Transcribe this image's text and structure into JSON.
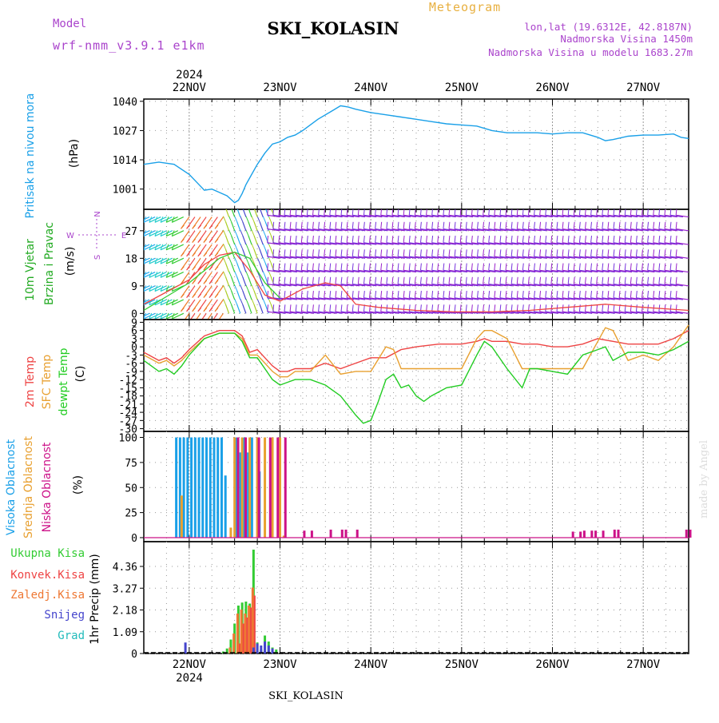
{
  "header": {
    "model_label": "Model",
    "model_name": "wrf-nmm_v3.9.1 e1km",
    "station": "SKI_KOLASIN",
    "meteogram": "Meteogram",
    "lonlat": "lon,lat (19.6312E, 42.8187N)",
    "elevation": "Nadmorska Visina 1450m",
    "model_elevation": "Nadmorska Visina u modelu 1683.27m",
    "footer_station": "SKI_KOLASIN",
    "watermark": "made by Angel"
  },
  "colors": {
    "pressure": "#1aa0e8",
    "temp2m": "#ee4444",
    "sfc": "#e8a030",
    "dewpt": "#22cc22",
    "high_cloud": "#1aa0e8",
    "mid_cloud": "#e8a030",
    "low_cloud": "#cc1188",
    "total_precip": "#33cc33",
    "conv": "#ee4444",
    "frz": "#ee7733",
    "snow": "#4444cc",
    "hail": "#22bbbb",
    "wind_label": "#22aa22",
    "wind_scale": "#aa44cc",
    "title_purple": "#aa44cc",
    "meteogram_orange": "#e8b040"
  },
  "chart_data": [
    {
      "type": "line",
      "id": "pressure",
      "ylabel_lines": [
        "Pritisak na nivou mora"
      ],
      "unit": "(hPa)",
      "yticks": [
        1001,
        1014,
        1027,
        1040
      ],
      "ylim": [
        992,
        1041
      ],
      "x_date_labels": [
        "22NOV",
        "23NOV",
        "24NOV",
        "25NOV",
        "26NOV",
        "27NOV"
      ],
      "x_year_label": "2024",
      "xlim_hours": [
        -12,
        132
      ],
      "grid": true,
      "series": [
        {
          "color_key": "pressure",
          "x": [
            -12,
            -8,
            -4,
            0,
            2,
            4,
            6,
            8,
            10,
            12,
            13,
            14,
            15,
            16,
            18,
            20,
            22,
            24,
            26,
            28,
            30,
            34,
            38,
            40,
            42,
            44,
            48,
            52,
            56,
            60,
            64,
            68,
            72,
            76,
            80,
            84,
            88,
            92,
            96,
            100,
            104,
            108,
            110,
            112,
            116,
            120,
            124,
            128,
            130,
            132
          ],
          "y": [
            1012,
            1013,
            1012,
            1007.5,
            1004,
            1000.5,
            1001,
            999.5,
            998,
            995,
            996,
            999,
            1003,
            1006,
            1012,
            1017,
            1021,
            1022,
            1024,
            1025,
            1027,
            1032,
            1036,
            1038,
            1037.5,
            1036.5,
            1035,
            1034,
            1033,
            1032,
            1031,
            1030,
            1029.5,
            1029,
            1027,
            1026,
            1026,
            1026,
            1025.5,
            1026,
            1026,
            1024,
            1022.5,
            1023,
            1024.5,
            1025,
            1025,
            1025.5,
            1024,
            1023.5
          ]
        }
      ]
    },
    {
      "type": "line",
      "id": "wind",
      "ylabel_lines": [
        "10m Vjetar",
        "Brzina i Pravac"
      ],
      "unit": "(m/s)",
      "yticks": [
        0,
        9,
        18,
        27
      ],
      "ylim": [
        -2,
        34
      ],
      "grid": true,
      "compass": {
        "n": "N",
        "s": "S",
        "e": "E",
        "w": "W"
      },
      "series": [
        {
          "name": "",
          "color_key": "temp2m",
          "x": [
            -12,
            -6,
            0,
            4,
            8,
            12,
            16,
            20,
            24,
            30,
            36,
            40,
            44,
            50,
            60,
            70,
            80,
            90,
            100,
            110,
            120,
            132
          ],
          "y": [
            3,
            7,
            11,
            16,
            19,
            20,
            14,
            6,
            4,
            8,
            10,
            9,
            3,
            2,
            1,
            0.5,
            0.5,
            1,
            2,
            3,
            2,
            1
          ]
        },
        {
          "name": "",
          "color_key": "total_precip",
          "x": [
            -12,
            -8,
            -4,
            0,
            4,
            8,
            12,
            16,
            20,
            24
          ],
          "y": [
            1,
            4,
            7,
            10,
            14,
            18,
            20,
            18,
            10,
            5
          ]
        }
      ],
      "barb_rows": [
        0,
        4.5,
        9,
        13.5,
        18,
        22.5,
        27,
        31.5
      ]
    },
    {
      "type": "line",
      "id": "temperature",
      "ylabel_lines": [
        "2m Temp",
        "SFC Temp",
        "dewpt Temp"
      ],
      "unit": "(C)",
      "yticks": [
        9,
        6,
        3,
        0,
        -3,
        -6,
        -9,
        -12,
        -15,
        -18,
        -21,
        -24,
        -27,
        -30
      ],
      "ytick_labels": [
        "9",
        "6",
        "3",
        "0",
        "-3",
        "-6",
        "-9",
        "-12",
        "-15",
        "-18",
        "-21",
        "-24",
        "-27",
        "-30"
      ],
      "ylim": [
        -31,
        10
      ],
      "grid": true,
      "series": [
        {
          "name": "2m Temp",
          "color_key": "temp2m",
          "x": [
            -12,
            -8,
            -6,
            -4,
            -2,
            0,
            4,
            8,
            12,
            14,
            16,
            18,
            20,
            22,
            24,
            26,
            28,
            32,
            36,
            40,
            44,
            48,
            52,
            56,
            60,
            66,
            72,
            76,
            78,
            80,
            84,
            88,
            92,
            96,
            100,
            104,
            108,
            112,
            116,
            120,
            124,
            128,
            132
          ],
          "y": [
            -2,
            -5,
            -4,
            -6,
            -4,
            -1,
            4,
            6,
            6,
            4,
            -2,
            -1,
            -4,
            -7,
            -9,
            -9,
            -8,
            -8,
            -6,
            -8,
            -6,
            -4,
            -4,
            -1,
            0,
            1,
            1,
            2,
            3,
            2,
            2,
            1,
            1,
            0,
            0,
            1,
            3,
            2,
            1,
            1,
            1,
            3,
            6
          ]
        },
        {
          "name": "SFC Temp",
          "color_key": "sfc",
          "x": [
            -12,
            -8,
            -6,
            -4,
            -2,
            0,
            4,
            8,
            12,
            14,
            16,
            18,
            20,
            22,
            24,
            26,
            28,
            32,
            36,
            40,
            44,
            48,
            52,
            54,
            56,
            60,
            66,
            72,
            76,
            78,
            80,
            84,
            88,
            92,
            96,
            100,
            104,
            108,
            110,
            112,
            116,
            120,
            124,
            128,
            132
          ],
          "y": [
            -3,
            -6,
            -5,
            -7,
            -5,
            -2,
            3,
            5,
            5,
            3,
            -3,
            -3,
            -6,
            -9,
            -11,
            -11,
            -9,
            -9,
            -3,
            -10,
            -9,
            -9,
            0,
            -1,
            -8,
            -8,
            -8,
            -8,
            3,
            6,
            6,
            3,
            -8,
            -8,
            -8,
            -8,
            -8,
            2,
            7,
            6,
            -5,
            -3,
            -5,
            0,
            8
          ]
        },
        {
          "name": "dewpt Temp",
          "color_key": "dewpt",
          "x": [
            -12,
            -8,
            -6,
            -4,
            -2,
            0,
            4,
            8,
            12,
            14,
            16,
            18,
            20,
            22,
            24,
            26,
            28,
            32,
            36,
            40,
            44,
            46,
            48,
            50,
            52,
            54,
            56,
            58,
            60,
            62,
            64,
            68,
            72,
            76,
            78,
            80,
            84,
            88,
            90,
            92,
            96,
            100,
            104,
            108,
            110,
            112,
            116,
            120,
            124,
            128,
            132
          ],
          "y": [
            -5,
            -9,
            -8,
            -10,
            -7,
            -3,
            3,
            5,
            5,
            2,
            -4,
            -4,
            -8,
            -12,
            -14,
            -13,
            -12,
            -12,
            -14,
            -18,
            -25,
            -28,
            -27,
            -20,
            -12,
            -10,
            -15,
            -14,
            -18,
            -20,
            -18,
            -15,
            -14,
            -3,
            2,
            0,
            -8,
            -15,
            -8,
            -8,
            -9,
            -10,
            -3,
            -1,
            0,
            -5,
            -2,
            -2,
            -3,
            -1,
            2
          ]
        }
      ]
    },
    {
      "type": "bar",
      "id": "clouds",
      "ylabel_lines": [
        "Visoka Oblacnost",
        "Srednja Oblacnost",
        "Niska Oblacnost"
      ],
      "unit": "(%)",
      "yticks": [
        0,
        25,
        50,
        75,
        100
      ],
      "ylim": [
        -4,
        106
      ],
      "grid": true,
      "series": [
        {
          "name": "Visoka Oblacnost",
          "color_key": "high_cloud",
          "x": [
            -3,
            -2,
            -1,
            0,
            1,
            2,
            3,
            4,
            5,
            6,
            7,
            8,
            9,
            10,
            13,
            14,
            15,
            16,
            17,
            19
          ],
          "y": [
            100,
            100,
            100,
            100,
            100,
            100,
            100,
            100,
            100,
            100,
            100,
            100,
            100,
            62,
            100,
            85,
            100,
            85,
            100,
            66
          ]
        },
        {
          "name": "Srednja Oblacnost",
          "color_key": "mid_cloud",
          "x": [
            -2,
            11,
            12,
            14,
            16,
            18,
            20,
            22,
            24,
            25
          ],
          "y": [
            42,
            10,
            100,
            100,
            100,
            100,
            100,
            100,
            100,
            2
          ]
        },
        {
          "name": "Niska Oblacnost",
          "color_key": "low_cloud",
          "x": [
            12.5,
            14.5,
            18,
            21,
            23,
            25,
            30,
            32,
            37,
            40,
            41,
            44,
            101,
            103,
            104,
            106,
            107,
            109,
            112,
            113,
            131,
            132
          ],
          "y": [
            100,
            100,
            100,
            100,
            100,
            100,
            7,
            7,
            8,
            8,
            8,
            8,
            6,
            6,
            7,
            7,
            7,
            7,
            8,
            8,
            8,
            8
          ]
        }
      ]
    },
    {
      "type": "bar",
      "id": "precip",
      "ylabel_lines": [
        "1hr Precip (mm)"
      ],
      "legend": [
        "Ukupna Kisa",
        "Konvek.Kisa",
        "Zaledj.Kisa",
        "Snijeg",
        "Grad"
      ],
      "yticks": [
        0,
        1.09,
        2.18,
        3.27,
        4.36
      ],
      "ylim": [
        0,
        5.6
      ],
      "x_date_labels": [
        "22NOV",
        "23NOV",
        "24NOV",
        "25NOV",
        "26NOV",
        "27NOV"
      ],
      "x_year_label": "2024",
      "grid": true,
      "series": [
        {
          "name": "Ukupna Kisa",
          "color_key": "total_precip",
          "x": [
            9,
            10,
            11,
            12,
            13,
            14,
            15,
            16,
            17,
            18,
            19,
            20,
            21,
            22,
            23
          ],
          "y": [
            0.1,
            0.25,
            0.7,
            1.5,
            2.4,
            2.55,
            2.6,
            2.5,
            5.2,
            0.55,
            0.2,
            0.9,
            0.6,
            0.3,
            0.2
          ]
        },
        {
          "name": "Konvek.Kisa",
          "color_key": "conv",
          "x": [
            13,
            14,
            15,
            16,
            17
          ],
          "y": [
            0.5,
            1.5,
            1.8,
            2.3,
            2.9
          ]
        },
        {
          "name": "Zaledj.Kisa",
          "color_key": "frz",
          "x": [
            11,
            12,
            13,
            14,
            15,
            16,
            17
          ],
          "y": [
            0.3,
            1.0,
            2.0,
            2.2,
            2.0,
            2.4,
            3.3
          ]
        },
        {
          "name": "Snijeg",
          "color_key": "snow",
          "x": [
            -1,
            17,
            18,
            19,
            20,
            21,
            22
          ],
          "y": [
            0.55,
            0.3,
            0.5,
            0.4,
            0.6,
            0.4,
            0.25
          ]
        },
        {
          "name": "Grad",
          "color_key": "hail",
          "x": [],
          "y": []
        }
      ]
    }
  ]
}
